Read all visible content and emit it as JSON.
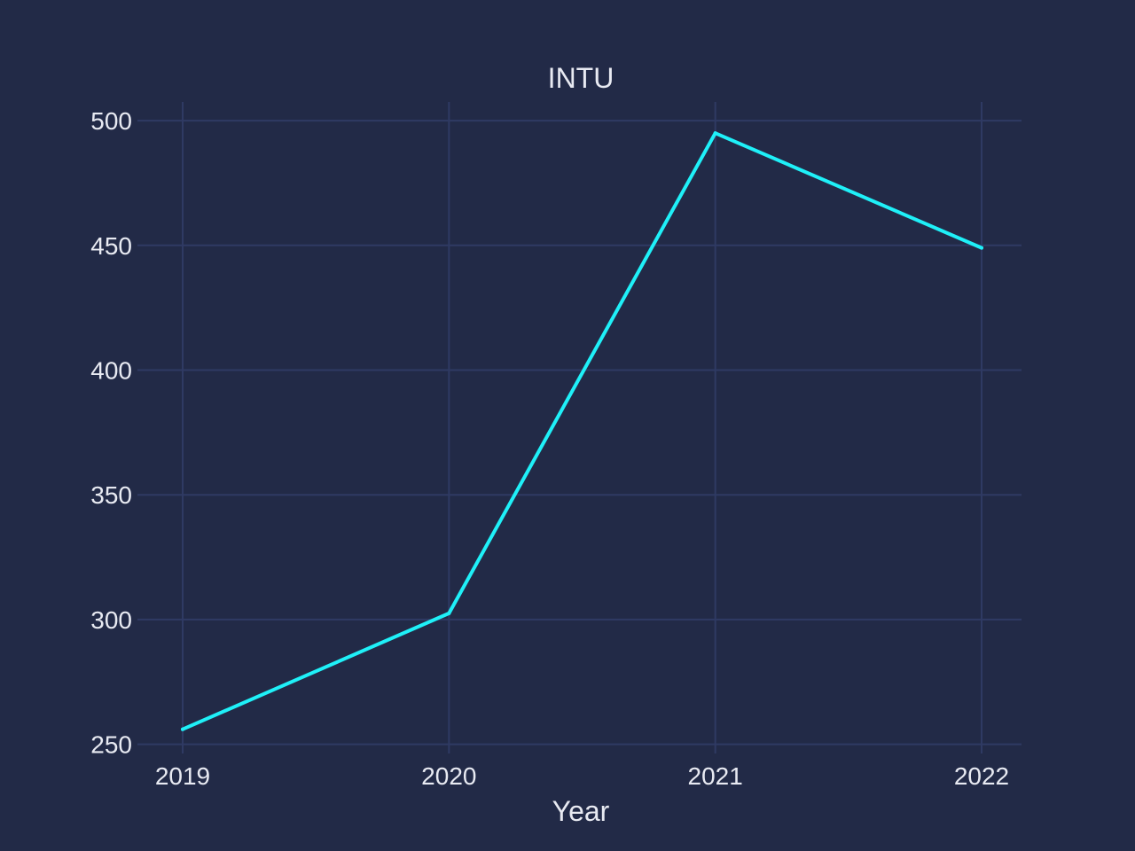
{
  "colors": {
    "background": "#222a47",
    "grid": "#2f3a63",
    "text": "#e8eaf2",
    "series": "#1ff0f8"
  },
  "chart_data": {
    "type": "line",
    "title": "INTU",
    "xlabel": "Year",
    "ylabel": "",
    "x": [
      "2019",
      "2020",
      "2021",
      "2022"
    ],
    "series": [
      {
        "values": [
          256,
          302.5,
          495,
          449
        ]
      }
    ],
    "yticks": [
      "250",
      "300",
      "350",
      "400",
      "450",
      "500"
    ],
    "ylim": [
      246.3,
      507.5
    ],
    "grid": true,
    "legend": "none"
  }
}
